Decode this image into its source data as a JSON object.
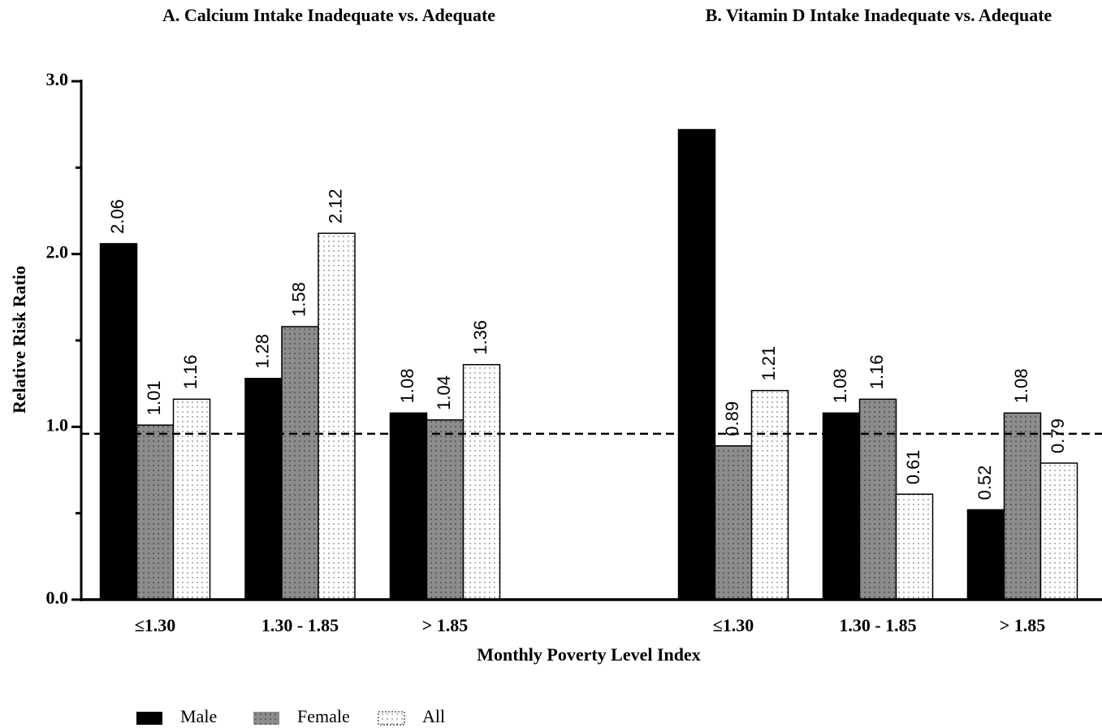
{
  "chart_data": {
    "type": "bar",
    "titles": [
      "A. Calcium Intake Inadequate vs. Adequate",
      "B. Vitamin D Intake Inadequate vs. Adequate"
    ],
    "xlabel": "Monthly Poverty Level Index",
    "ylabel": "Relative Risk Ratio",
    "categories": [
      "≤1.30",
      "1.30 - 1.85",
      "> 1.85",
      "≤1.30",
      "1.30 - 1.85",
      "> 1.85"
    ],
    "series": [
      {
        "name": "Male",
        "color": "#000000",
        "values": [
          2.06,
          1.28,
          1.08,
          2.72,
          1.08,
          0.52
        ],
        "value_labels": [
          "2.06",
          "1.28",
          "1.08",
          null,
          "1.08",
          "0.52"
        ]
      },
      {
        "name": "Female",
        "color": "#8c8c8c",
        "values": [
          1.01,
          1.58,
          1.04,
          0.89,
          1.16,
          1.08
        ]
      },
      {
        "name": "All",
        "color": "#ffffff",
        "values": [
          1.16,
          2.12,
          1.36,
          1.21,
          0.61,
          0.79
        ]
      }
    ],
    "ylim": [
      0,
      3
    ],
    "yticks": [
      {
        "value": 0,
        "label": "0.0"
      },
      {
        "value": 1,
        "label": "1.0"
      },
      {
        "value": 2,
        "label": "2.0"
      },
      {
        "value": 3,
        "label": "3.0"
      }
    ],
    "minor_yticks": [
      0.5,
      1.5,
      2.5
    ],
    "reference_line": 0.96
  }
}
